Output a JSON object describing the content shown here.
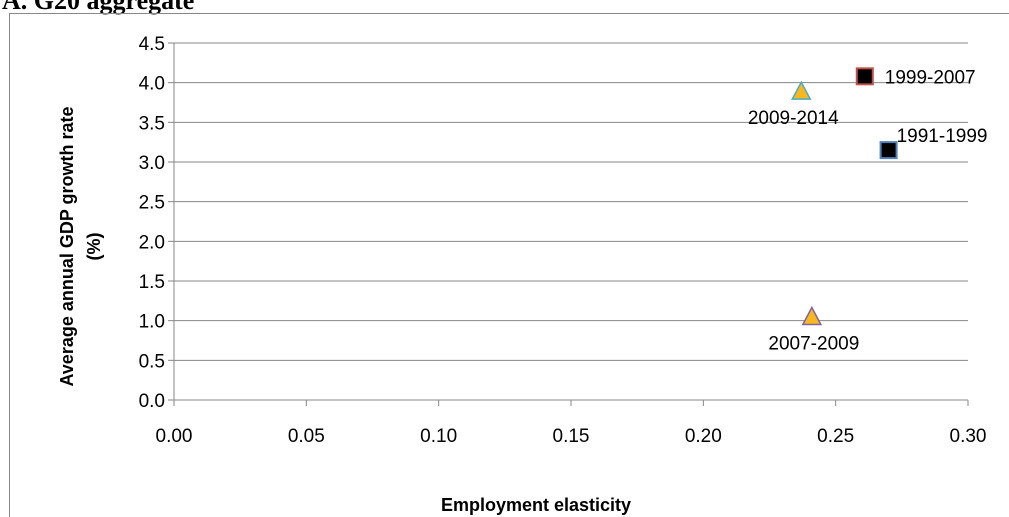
{
  "page": {
    "title": "A. G20 aggregate"
  },
  "chart_data": {
    "type": "scatter",
    "title": "A. G20 aggregate",
    "xlabel": "Employment elasticity",
    "ylabel": "Average annual GDP growth rate (%)",
    "ylabel_lines": [
      "Average annual GDP growth rate",
      "(%)"
    ],
    "xlim": [
      0,
      0.3
    ],
    "ylim": [
      0,
      4.5
    ],
    "x_ticks": [
      "0.00",
      "0.05",
      "0.10",
      "0.15",
      "0.20",
      "0.25",
      "0.30"
    ],
    "y_ticks": [
      "0.0",
      "0.5",
      "1.0",
      "1.5",
      "2.0",
      "2.5",
      "3.0",
      "3.5",
      "4.0",
      "4.5"
    ],
    "grid": "horizontal",
    "legend": "none",
    "points": [
      {
        "label": "1991-1999",
        "x": 0.27,
        "y": 3.15,
        "marker": "square",
        "fill": "#000000",
        "stroke": "#4f81bd"
      },
      {
        "label": "1999-2007",
        "x": 0.261,
        "y": 4.08,
        "marker": "square",
        "fill": "#000000",
        "stroke": "#c0504d"
      },
      {
        "label": "2007-2009",
        "x": 0.241,
        "y": 1.04,
        "marker": "triangle",
        "fill": "#f9b71f",
        "stroke": "#8064a2"
      },
      {
        "label": "2009-2014",
        "x": 0.237,
        "y": 3.88,
        "marker": "triangle",
        "fill": "#f9b71f",
        "stroke": "#4bacc6"
      }
    ]
  }
}
